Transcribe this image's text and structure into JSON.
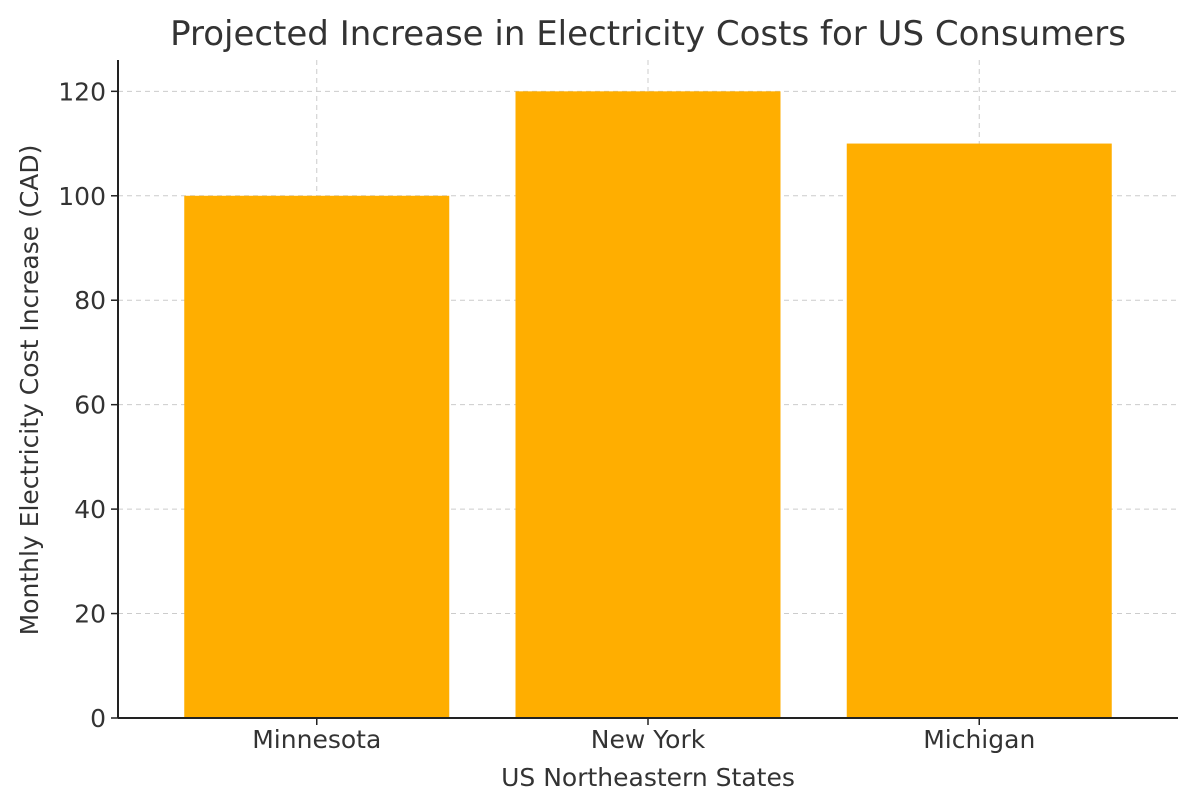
{
  "chart_data": {
    "type": "bar",
    "title": "Projected Increase in Electricity Costs for US Consumers",
    "xlabel": "US Northeastern States",
    "ylabel": "Monthly Electricity Cost Increase (CAD)",
    "categories": [
      "Minnesota",
      "New York",
      "Michigan"
    ],
    "values": [
      100,
      120,
      110
    ],
    "ylim": [
      0,
      126
    ],
    "yticks": [
      0,
      20,
      40,
      60,
      80,
      100,
      120
    ],
    "grid": true,
    "bar_color": "#FFAE00"
  }
}
